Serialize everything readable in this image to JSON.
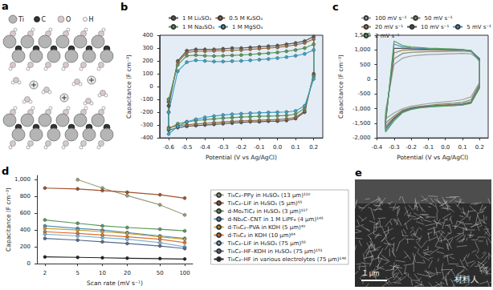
{
  "panels": [
    {
      "title": "a",
      "legend": [
        "Ti",
        "C",
        "O",
        "H"
      ]
    },
    {
      "title": "e",
      "scale_bar": "1 μm"
    }
  ],
  "watermark": "材料人",
  "chart_data": [
    {
      "type": "line",
      "title": "b",
      "x_label": "Potential (V vs Ag/AgCl)",
      "y_label": "Capacitance (F cm⁻³)",
      "x": [
        -0.6,
        -0.55,
        -0.5,
        -0.45,
        -0.4,
        -0.35,
        -0.3,
        -0.25,
        -0.2,
        -0.15,
        -0.1,
        -0.05,
        0,
        0.05,
        0.1,
        0.15,
        0.2,
        0.2,
        0.15,
        0.1,
        0.05,
        0,
        -0.05,
        -0.1,
        -0.15,
        -0.2,
        -0.25,
        -0.3,
        -0.35,
        -0.4,
        -0.45,
        -0.5,
        -0.55,
        -0.6,
        -0.6
      ],
      "xlim": [
        -0.65,
        0.25
      ],
      "xticks": [
        -0.6,
        -0.5,
        -0.4,
        -0.3,
        -0.2,
        -0.1,
        {
          "value": 0,
          "label": "0.0"
        },
        0.1,
        0.2
      ],
      "ylim": [
        -400,
        400
      ],
      "yticks": [
        -400,
        -300,
        -200,
        -100,
        0,
        100,
        200,
        300,
        400
      ],
      "grid": false,
      "legend": "top",
      "marker": "circle",
      "series": [
        {
          "name": "1 M Li₂SO₄",
          "color": "#5a5a5a",
          "values": [
            -150,
            200,
            280,
            290,
            290,
            290,
            295,
            300,
            300,
            305,
            310,
            315,
            320,
            330,
            340,
            355,
            390,
            100,
            -200,
            -250,
            -265,
            -270,
            -270,
            -275,
            -275,
            -280,
            -285,
            -290,
            -295,
            -300,
            -305,
            -310,
            -320,
            -340,
            -150
          ]
        },
        {
          "name": "0.5 M K₂SO₄",
          "color": "#9a6b3f",
          "values": [
            -120,
            190,
            265,
            275,
            275,
            278,
            280,
            283,
            285,
            290,
            295,
            300,
            305,
            315,
            325,
            340,
            370,
            90,
            -190,
            -240,
            -252,
            -258,
            -260,
            -263,
            -265,
            -268,
            -272,
            -277,
            -282,
            -287,
            -292,
            -298,
            -305,
            -320,
            -120
          ]
        },
        {
          "name": "1 M Na₂SO₄",
          "color": "#5a9a5a",
          "values": [
            -100,
            170,
            240,
            245,
            240,
            238,
            240,
            243,
            246,
            250,
            255,
            260,
            266,
            275,
            285,
            300,
            330,
            80,
            -170,
            -215,
            -225,
            -228,
            -230,
            -232,
            -235,
            -238,
            -242,
            -246,
            -252,
            -258,
            -265,
            -275,
            -290,
            -330,
            -100
          ]
        },
        {
          "name": "1 M MgSO₄",
          "color": "#3fa3c8",
          "values": [
            -200,
            120,
            190,
            205,
            200,
            195,
            195,
            198,
            200,
            205,
            210,
            215,
            222,
            230,
            240,
            255,
            285,
            60,
            -150,
            -190,
            -198,
            -200,
            -202,
            -205,
            -208,
            -212,
            -216,
            -222,
            -230,
            -240,
            -255,
            -275,
            -310,
            -370,
            -200
          ]
        }
      ]
    },
    {
      "type": "line",
      "title": "c",
      "x_label": "Potential (V vs Ag/AgCl)",
      "y_label": "Capacitance (F cm⁻³)",
      "x": [
        -0.35,
        -0.3,
        -0.25,
        -0.2,
        -0.15,
        -0.1,
        -0.05,
        0,
        0.05,
        0.1,
        0.15,
        0.2,
        0.2,
        0.15,
        0.1,
        0.05,
        0,
        -0.05,
        -0.1,
        -0.15,
        -0.2,
        -0.25,
        -0.3,
        -0.35,
        -0.35
      ],
      "xlim": [
        -0.4,
        0.25
      ],
      "xticks": [
        -0.4,
        -0.3,
        -0.2,
        -0.1,
        {
          "value": 0,
          "label": "0.0"
        },
        0.1,
        0.2
      ],
      "ylim": [
        -2000,
        1500
      ],
      "yticks": [
        {
          "value": -2000,
          "label": "-2,000"
        },
        {
          "value": -1500,
          "label": "-1,500"
        },
        {
          "value": -1000,
          "label": "-1,000"
        },
        -500,
        0,
        500,
        {
          "value": 1000,
          "label": "1,000"
        },
        {
          "value": 1500,
          "label": "1,500"
        }
      ],
      "grid": false,
      "legend": "top",
      "marker": "none",
      "series": [
        {
          "name": "100 mV s⁻¹",
          "color": "#a0a0a0",
          "values": [
            -1100,
            500,
            720,
            790,
            820,
            840,
            850,
            860,
            870,
            880,
            870,
            650,
            -100,
            -600,
            -700,
            -740,
            -770,
            -800,
            -830,
            -870,
            -920,
            -1000,
            -1150,
            -1350,
            -1100
          ]
        },
        {
          "name": "50 mV s⁻¹",
          "color": "#7d8a6a",
          "values": [
            -1250,
            700,
            880,
            920,
            930,
            940,
            945,
            950,
            955,
            960,
            940,
            700,
            -150,
            -700,
            -790,
            -820,
            -840,
            -860,
            -890,
            -920,
            -970,
            -1050,
            -1250,
            -1500,
            -1250
          ]
        },
        {
          "name": "20 mV s⁻¹",
          "color": "#a0825a",
          "values": [
            -1350,
            900,
            990,
            1000,
            1000,
            1000,
            1000,
            1000,
            1000,
            1000,
            970,
            700,
            -200,
            -760,
            -840,
            -860,
            -875,
            -890,
            -910,
            -940,
            -990,
            -1080,
            -1300,
            -1600,
            -1350
          ]
        },
        {
          "name": "10 mV s⁻¹",
          "color": "#505050",
          "values": [
            -1450,
            1050,
            1050,
            1040,
            1030,
            1020,
            1015,
            1010,
            1005,
            1000,
            970,
            680,
            -250,
            -790,
            -860,
            -880,
            -895,
            -905,
            -925,
            -955,
            -1005,
            -1100,
            -1340,
            -1680,
            -1450
          ]
        },
        {
          "name": "5 mV s⁻¹",
          "color": "#4a8fc4",
          "values": [
            -1500,
            1200,
            1100,
            1070,
            1050,
            1040,
            1030,
            1025,
            1020,
            1010,
            975,
            650,
            -280,
            -810,
            -875,
            -895,
            -905,
            -920,
            -940,
            -970,
            -1020,
            -1120,
            -1380,
            -1750,
            -1500
          ]
        },
        {
          "name": "2 mV s⁻¹",
          "color": "#5aa05a",
          "values": [
            -1550,
            1300,
            1150,
            1100,
            1080,
            1060,
            1050,
            1040,
            1030,
            1010,
            960,
            600,
            -300,
            -820,
            -880,
            -900,
            -915,
            -930,
            -950,
            -980,
            -1030,
            -1140,
            -1420,
            -1800,
            -1550
          ]
        }
      ]
    },
    {
      "type": "line",
      "title": "d",
      "x_label": "Scan rate (mV s⁻¹)",
      "y_label": "Capacitance (F cm⁻³)",
      "x": [
        2,
        5,
        10,
        20,
        50,
        100
      ],
      "log": "x",
      "xlim": [
        1.6,
        125
      ],
      "xticks": [
        2,
        5,
        10,
        20,
        50,
        100
      ],
      "ylim": [
        0,
        1050
      ],
      "yticks": [
        0,
        200,
        400,
        600,
        800,
        {
          "value": 1000,
          "label": "1,000"
        }
      ],
      "grid": false,
      "legend": "right",
      "marker": "circle",
      "series": [
        {
          "name": "Ti₃C₂–PPy in H₂SO₄ (13 μm)¹¹⁰",
          "color": "#9aa07a",
          "values": [
            null,
            1000,
            900,
            810,
            700,
            580
          ]
        },
        {
          "name": "Ti₃C₂–LiF in H₂SO₄ (5 μm)⁵⁵",
          "color": "#a0522d",
          "values": [
            900,
            890,
            870,
            850,
            820,
            780
          ]
        },
        {
          "name": "d-Mo₂TiC₂ in H₂SO₄ (3 μm)¹¹⁷",
          "color": "#5a9a5a",
          "values": [
            520,
            480,
            450,
            430,
            410,
            390
          ]
        },
        {
          "name": "d-Nb₂C–CNT in 1 M LiPF₆ (4 μm)¹⁴⁵",
          "color": "#4a90c2",
          "values": [
            450,
            420,
            400,
            370,
            330,
            300
          ]
        },
        {
          "name": "d-Ti₃C₂–PVA in KOH (5 μm)⁴⁰",
          "color": "#c8a030",
          "values": [
            420,
            400,
            380,
            360,
            320,
            290
          ]
        },
        {
          "name": "d-Ti₃C₂ in KOH (10 μm)⁶⁴",
          "color": "#e07030",
          "values": [
            380,
            360,
            340,
            320,
            290,
            250
          ]
        },
        {
          "name": "Ti₃C₂–LiF in H₂SO₄ (75 μm)⁵⁵",
          "color": "#7fb3d5",
          "values": [
            350,
            330,
            310,
            290,
            250,
            200
          ]
        },
        {
          "name": "Ti₃C₂–HF–KOH in H₂SO₄ (75 μm)¹⁵¹",
          "color": "#556b8d",
          "values": [
            300,
            280,
            260,
            240,
            210,
            180
          ]
        },
        {
          "name": "Ti₃C₂–HF in various electrolytes (75 μm)¹⁴⁶",
          "color": "#222222",
          "values": [
            80,
            75,
            70,
            65,
            60,
            55
          ]
        }
      ]
    }
  ]
}
